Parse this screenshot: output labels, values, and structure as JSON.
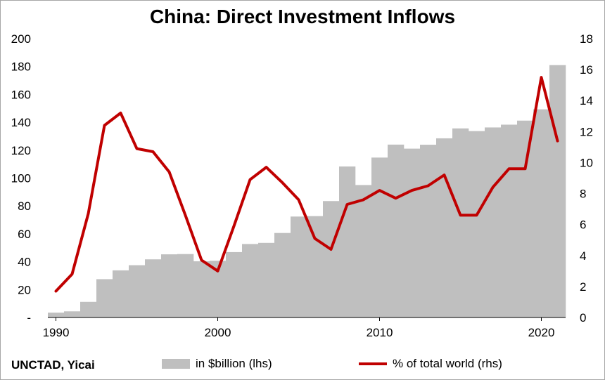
{
  "source": "UNCTAD, Yicai",
  "chart_data": {
    "type": "bar+line",
    "title": "China: Direct Investment Inflows",
    "x": [
      1990,
      1991,
      1992,
      1993,
      1994,
      1995,
      1996,
      1997,
      1998,
      1999,
      2000,
      2001,
      2002,
      2003,
      2004,
      2005,
      2006,
      2007,
      2008,
      2009,
      2010,
      2011,
      2012,
      2013,
      2014,
      2015,
      2016,
      2017,
      2018,
      2019,
      2020,
      2021
    ],
    "x_ticks": [
      "1990",
      "2000",
      "2010",
      "2020"
    ],
    "y_left_ticks": [
      "-",
      "20",
      "40",
      "60",
      "80",
      "100",
      "120",
      "140",
      "160",
      "180",
      "200"
    ],
    "y_right_ticks": [
      "0",
      "2",
      "4",
      "6",
      "8",
      "10",
      "12",
      "14",
      "16",
      "18"
    ],
    "ylim_left": [
      0,
      200
    ],
    "ylim_right": [
      0,
      18
    ],
    "series": [
      {
        "name": "in $billion (lhs)",
        "axis": "left",
        "kind": "bar",
        "color": "#bfbfbf",
        "values": [
          3.5,
          4.4,
          11.2,
          27.5,
          33.8,
          37.5,
          41.7,
          45.3,
          45.5,
          40.3,
          40.7,
          46.9,
          52.7,
          53.5,
          60.6,
          72.4,
          72.7,
          83.5,
          108.3,
          95.0,
          114.7,
          124.0,
          121.1,
          123.9,
          128.5,
          135.6,
          133.7,
          136.3,
          138.3,
          141.2,
          149.3,
          181.0
        ]
      },
      {
        "name": "% of total world (rhs)",
        "axis": "right",
        "kind": "line",
        "color": "#c00000",
        "values": [
          1.7,
          2.8,
          6.7,
          12.4,
          13.2,
          10.9,
          10.7,
          9.4,
          6.6,
          3.7,
          3.0,
          5.9,
          8.9,
          9.7,
          8.7,
          7.6,
          5.1,
          4.4,
          7.3,
          7.6,
          8.2,
          7.7,
          8.2,
          8.5,
          9.2,
          6.6,
          6.6,
          8.4,
          9.6,
          9.6,
          15.5,
          11.4
        ]
      }
    ],
    "grid": false,
    "legend": "bottom"
  }
}
